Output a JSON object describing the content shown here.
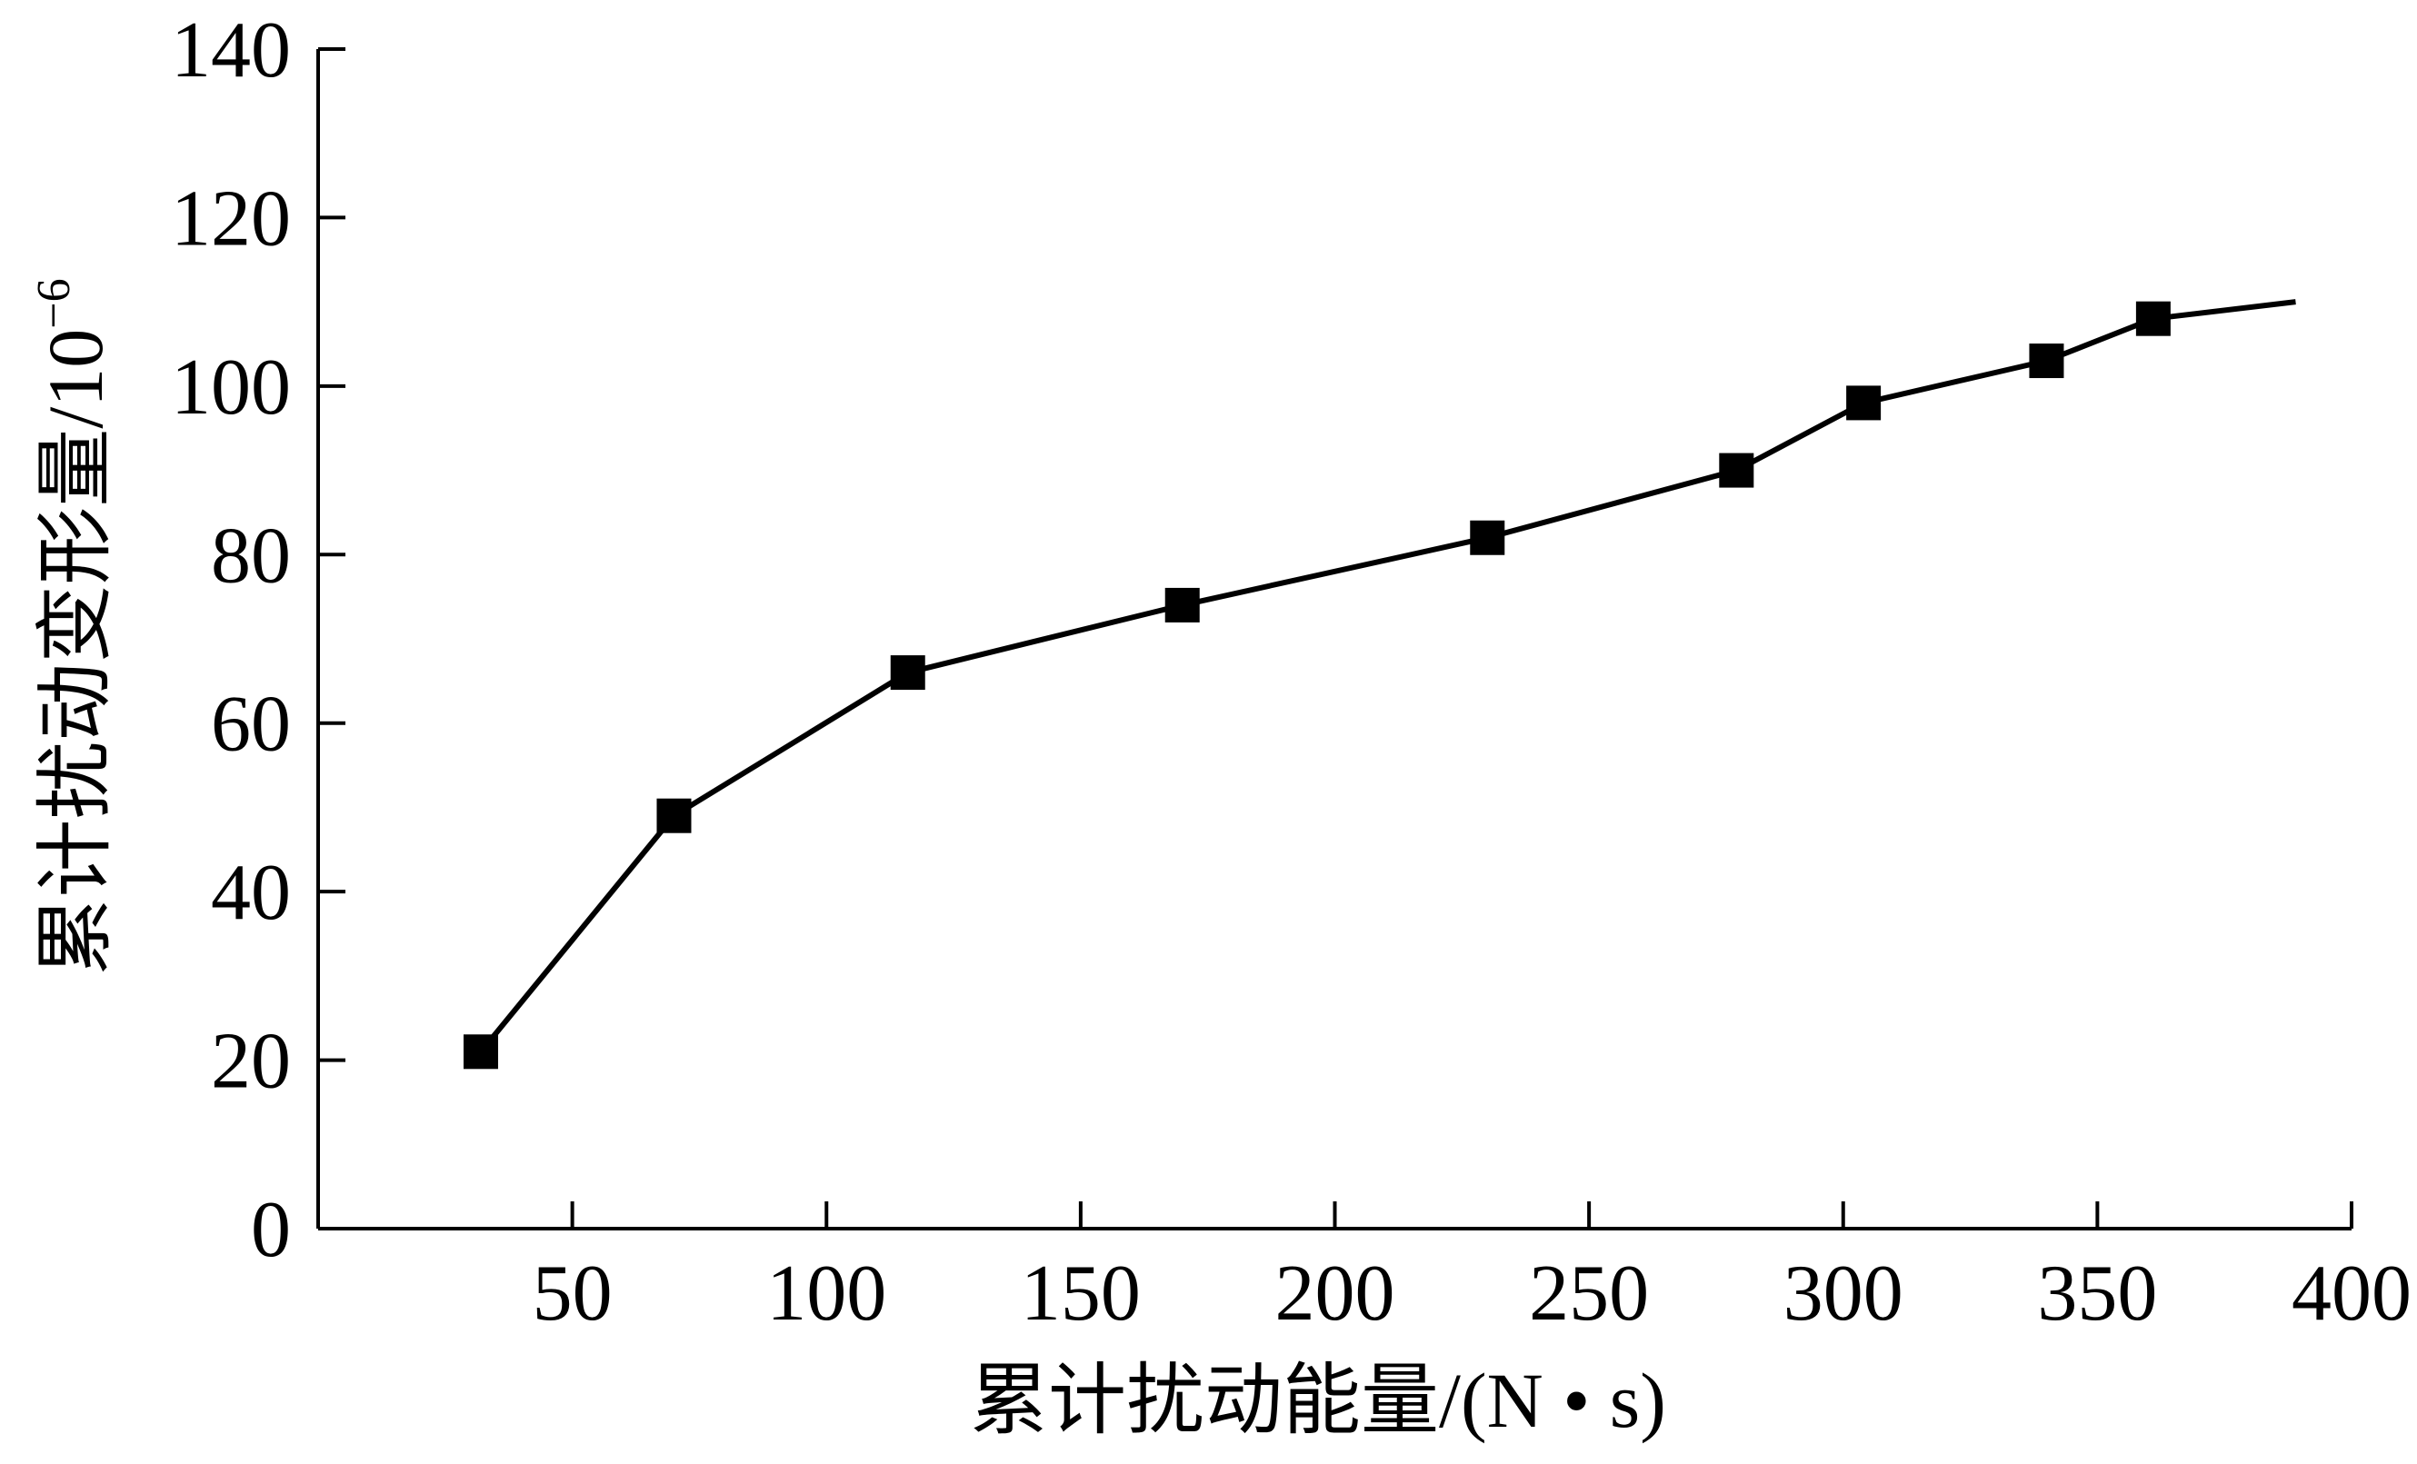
{
  "chart_data": {
    "type": "line",
    "xlabel": "累计扰动能量/(N • s)",
    "ylabel": "累计扰动变形量/10",
    "ylabel_exponent": "−6",
    "xlim": [
      0,
      400
    ],
    "ylim": [
      0,
      140
    ],
    "x_ticks": [
      50,
      100,
      150,
      200,
      250,
      300,
      350,
      400
    ],
    "y_ticks": [
      0,
      20,
      40,
      60,
      80,
      100,
      120,
      140
    ],
    "series": [
      {
        "marker": "square",
        "color": "#000000",
        "points": [
          {
            "x": 32,
            "y": 21
          },
          {
            "x": 70,
            "y": 49
          },
          {
            "x": 116,
            "y": 66
          },
          {
            "x": 170,
            "y": 74
          },
          {
            "x": 230,
            "y": 82
          },
          {
            "x": 279,
            "y": 90
          },
          {
            "x": 304,
            "y": 98
          },
          {
            "x": 340,
            "y": 103
          },
          {
            "x": 361,
            "y": 108
          }
        ],
        "line_end": {
          "x": 389,
          "y": 110
        }
      }
    ],
    "grid": false
  }
}
